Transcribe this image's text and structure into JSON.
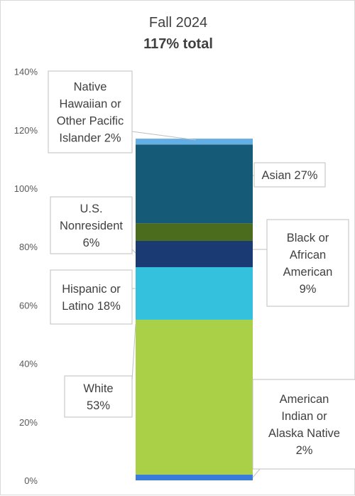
{
  "chart_data": {
    "type": "bar",
    "stacked": true,
    "title": "Fall 2024",
    "subtitle": "117% total",
    "categories": [
      "Fall 2024"
    ],
    "ylim": [
      0,
      140
    ],
    "yticks": [
      0,
      20,
      40,
      60,
      80,
      100,
      120,
      140
    ],
    "y_tick_format": "percent",
    "grid": false,
    "series": [
      {
        "name": "American Indian or Alaska Native",
        "value": 2,
        "color": "#3a7dd8",
        "label_lines": [
          "American",
          "Indian or",
          "Alaska Native",
          "2%"
        ]
      },
      {
        "name": "White",
        "value": 53,
        "color": "#a9d046",
        "label_lines": [
          "White",
          "53%"
        ]
      },
      {
        "name": "Hispanic or Latino",
        "value": 18,
        "color": "#33c1de",
        "label_lines": [
          "Hispanic or",
          "Latino 18%"
        ]
      },
      {
        "name": "Black or African American",
        "value": 9,
        "color": "#1a3a73",
        "label_lines": [
          "Black or",
          "African",
          "American",
          "9%"
        ]
      },
      {
        "name": "U.S. Nonresident",
        "value": 6,
        "color": "#4b6b1d",
        "label_lines": [
          "U.S.",
          "Nonresident",
          "6%"
        ]
      },
      {
        "name": "Asian",
        "value": 27,
        "color": "#155b78",
        "label_lines": [
          "Asian 27%"
        ]
      },
      {
        "name": "Native Hawaiian or Other Pacific Islander",
        "value": 2,
        "color": "#64aee6",
        "label_lines": [
          "Native",
          "Hawaiian or",
          "Other Pacific",
          "Islander 2%"
        ]
      }
    ]
  }
}
